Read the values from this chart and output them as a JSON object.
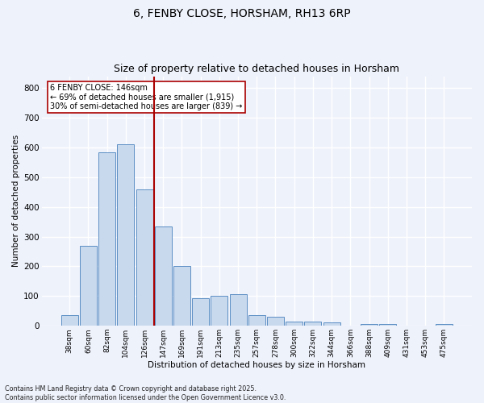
{
  "title1": "6, FENBY CLOSE, HORSHAM, RH13 6RP",
  "title2": "Size of property relative to detached houses in Horsham",
  "xlabel": "Distribution of detached houses by size in Horsham",
  "ylabel": "Number of detached properties",
  "bar_labels": [
    "38sqm",
    "60sqm",
    "82sqm",
    "104sqm",
    "126sqm",
    "147sqm",
    "169sqm",
    "191sqm",
    "213sqm",
    "235sqm",
    "257sqm",
    "278sqm",
    "300sqm",
    "322sqm",
    "344sqm",
    "366sqm",
    "388sqm",
    "409sqm",
    "431sqm",
    "453sqm",
    "475sqm"
  ],
  "bar_values": [
    35,
    268,
    585,
    610,
    458,
    335,
    200,
    92,
    100,
    105,
    37,
    30,
    15,
    15,
    10,
    0,
    5,
    5,
    0,
    0,
    6
  ],
  "bar_color": "#c9d9ed",
  "bar_edge_color": "#5b8ec4",
  "vline_pos": 4.5,
  "vline_color": "#aa0000",
  "annotation_text": "6 FENBY CLOSE: 146sqm\n← 69% of detached houses are smaller (1,915)\n30% of semi-detached houses are larger (839) →",
  "annotation_box_color": "white",
  "annotation_box_edge": "#aa0000",
  "ylim": [
    0,
    840
  ],
  "yticks": [
    0,
    100,
    200,
    300,
    400,
    500,
    600,
    700,
    800
  ],
  "footer_text": "Contains HM Land Registry data © Crown copyright and database right 2025.\nContains public sector information licensed under the Open Government Licence v3.0.",
  "bg_color": "#eef2fb",
  "grid_color": "#ffffff",
  "title1_fontsize": 10,
  "title2_fontsize": 9
}
